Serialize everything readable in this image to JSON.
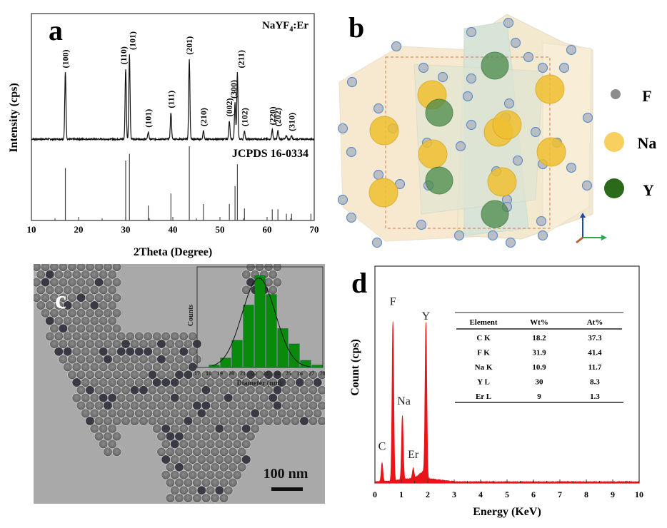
{
  "panels": {
    "a": {
      "label": "a"
    },
    "b": {
      "label": "b"
    },
    "c": {
      "label": "c"
    },
    "d": {
      "label": "d"
    }
  },
  "chart_data": [
    {
      "id": "a",
      "type": "line",
      "title": "",
      "sample_label": "NaYF",
      "sample_sub": "4",
      "sample_suffix": ":Er",
      "reference_label": "JCPDS 16-0334",
      "xlabel": "2Theta (Degree)",
      "ylabel": "Intensity (cps)",
      "xlim": [
        10,
        70
      ],
      "xticks": [
        10,
        20,
        30,
        40,
        50,
        60,
        70
      ],
      "peaks": [
        {
          "x": 17.2,
          "h": 0.55,
          "label": "(100)"
        },
        {
          "x": 30.0,
          "h": 0.58,
          "label": "(110)"
        },
        {
          "x": 30.8,
          "h": 0.7,
          "label": "(101)"
        },
        {
          "x": 34.8,
          "h": 0.06,
          "label": "(101)"
        },
        {
          "x": 39.6,
          "h": 0.22,
          "label": "(111)"
        },
        {
          "x": 43.5,
          "h": 0.66,
          "label": "(201)"
        },
        {
          "x": 46.5,
          "h": 0.07,
          "label": "(210)"
        },
        {
          "x": 52.0,
          "h": 0.15,
          "label": "(002)"
        },
        {
          "x": 53.2,
          "h": 0.3,
          "label": "(300)"
        },
        {
          "x": 53.7,
          "h": 0.55,
          "label": "(211)"
        },
        {
          "x": 55.2,
          "h": 0.07,
          "label": "(102)"
        },
        {
          "x": 61.1,
          "h": 0.08,
          "label": "(220)"
        },
        {
          "x": 62.3,
          "h": 0.07,
          "label": "(202)"
        },
        {
          "x": 64.1,
          "h": 0.03,
          "label": ""
        },
        {
          "x": 65.2,
          "h": 0.03,
          "label": "(310)"
        }
      ],
      "reference_lines": [
        {
          "x": 17.2,
          "h": 0.7
        },
        {
          "x": 30.0,
          "h": 0.8
        },
        {
          "x": 30.8,
          "h": 0.89
        },
        {
          "x": 34.8,
          "h": 0.2
        },
        {
          "x": 39.6,
          "h": 0.36
        },
        {
          "x": 43.5,
          "h": 0.99
        },
        {
          "x": 46.5,
          "h": 0.22
        },
        {
          "x": 52.0,
          "h": 0.22
        },
        {
          "x": 53.2,
          "h": 0.46
        },
        {
          "x": 53.7,
          "h": 0.75
        },
        {
          "x": 55.2,
          "h": 0.16
        },
        {
          "x": 61.1,
          "h": 0.15
        },
        {
          "x": 62.3,
          "h": 0.15
        },
        {
          "x": 64.1,
          "h": 0.09
        },
        {
          "x": 65.2,
          "h": 0.09
        },
        {
          "x": 69.3,
          "h": 0.09
        }
      ]
    },
    {
      "id": "c-inset",
      "type": "bar",
      "title": "",
      "xlabel": "Diameter (nm)",
      "ylabel": "Counts",
      "xlim": [
        17,
        28
      ],
      "xticks": [
        17,
        18,
        19,
        20,
        21,
        22,
        23,
        24,
        25,
        26,
        27,
        28
      ],
      "bins": [
        18.5,
        19.5,
        20.5,
        21.5,
        22.5,
        23.5,
        24.5,
        25.5,
        26.5,
        27.5
      ],
      "values": [
        2,
        8,
        23,
        53,
        78,
        62,
        33,
        20,
        6,
        2
      ],
      "fit": {
        "type": "gaussian",
        "mean": 22.4,
        "sigma": 1.45,
        "peak": 76
      },
      "bar_color": "#0a8a0a",
      "scale_bar": "100 nm"
    },
    {
      "id": "d",
      "type": "area",
      "title": "",
      "xlabel": "Energy (KeV)",
      "ylabel": "Count (cps)",
      "xlim": [
        0,
        10
      ],
      "xticks": [
        0,
        1,
        2,
        3,
        4,
        5,
        6,
        7,
        8,
        9,
        10
      ],
      "color": "#e8141a",
      "peaks": [
        {
          "x": 0.27,
          "h": 0.09,
          "label": "C"
        },
        {
          "x": 0.68,
          "h": 0.77,
          "label": "F"
        },
        {
          "x": 1.04,
          "h": 0.31,
          "label": "Na"
        },
        {
          "x": 1.45,
          "h": 0.05,
          "label": "Er"
        },
        {
          "x": 1.93,
          "h": 0.71,
          "label": "Y"
        }
      ],
      "table": {
        "headers": [
          "Element",
          "Wt%",
          "At%"
        ],
        "rows": [
          [
            "C  K",
            "18.2",
            "37.3"
          ],
          [
            "F  K",
            "31.9",
            "41.4"
          ],
          [
            "Na K",
            "10.9",
            "11.7"
          ],
          [
            "Y  L",
            "30",
            "8.3"
          ],
          [
            "Er L",
            "9",
            "1.3"
          ]
        ]
      }
    }
  ],
  "structure": {
    "legend": [
      {
        "symbol": "F",
        "color": "#8c8c8c"
      },
      {
        "symbol": "Na",
        "color": "#f8d060"
      },
      {
        "symbol": "Y",
        "color": "#2a6a1a"
      }
    ]
  }
}
